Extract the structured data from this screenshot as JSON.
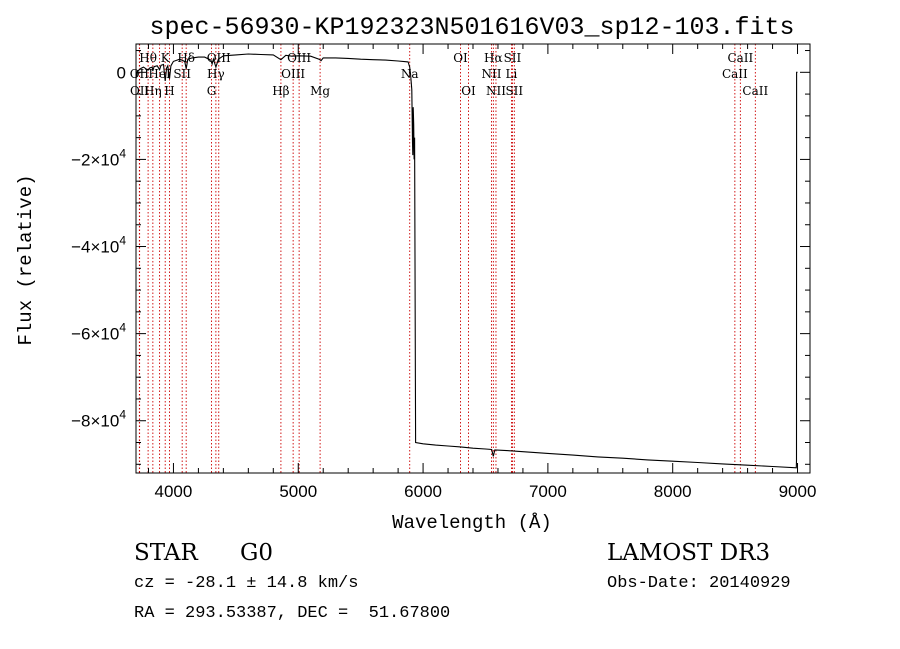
{
  "chart_data": {
    "type": "line",
    "title": "spec-56930-KP192323N501616V03_sp12-103.fits",
    "xlabel": "Wavelength (Å)",
    "ylabel": "Flux (relative)",
    "xlim": [
      3700,
      9100
    ],
    "ylim": [
      -92000,
      6500
    ],
    "x_ticks": [
      {
        "value": 4000,
        "label": "4000"
      },
      {
        "value": 5000,
        "label": "5000"
      },
      {
        "value": 6000,
        "label": "6000"
      },
      {
        "value": 7000,
        "label": "7000"
      },
      {
        "value": 8000,
        "label": "8000"
      },
      {
        "value": 9000,
        "label": "9000"
      }
    ],
    "y_ticks": [
      {
        "value": 0,
        "mantissa": "0",
        "exp": ""
      },
      {
        "value": -20000,
        "mantissa": "−2×10",
        "exp": "4"
      },
      {
        "value": -40000,
        "mantissa": "−4×10",
        "exp": "4"
      },
      {
        "value": -60000,
        "mantissa": "−6×10",
        "exp": "4"
      },
      {
        "value": -80000,
        "mantissa": "−8×10",
        "exp": "4"
      }
    ],
    "series": [
      {
        "name": "spectrum",
        "points": [
          [
            3700,
            -1500
          ],
          [
            3710,
            200
          ],
          [
            3740,
            900
          ],
          [
            3760,
            1200
          ],
          [
            3780,
            800
          ],
          [
            3797,
            500
          ],
          [
            3810,
            1000
          ],
          [
            3830,
            1200
          ],
          [
            3835,
            300
          ],
          [
            3845,
            1300
          ],
          [
            3870,
            1500
          ],
          [
            3889,
            600
          ],
          [
            3900,
            1600
          ],
          [
            3920,
            1800
          ],
          [
            3934,
            -2000
          ],
          [
            3945,
            1000
          ],
          [
            3955,
            1500
          ],
          [
            3968,
            -1500
          ],
          [
            3980,
            1500
          ],
          [
            4000,
            2500
          ],
          [
            4050,
            3000
          ],
          [
            4090,
            2500
          ],
          [
            4102,
            800
          ],
          [
            4115,
            3000
          ],
          [
            4150,
            3300
          ],
          [
            4200,
            3500
          ],
          [
            4250,
            3500
          ],
          [
            4300,
            2800
          ],
          [
            4310,
            1900
          ],
          [
            4320,
            3000
          ],
          [
            4340,
            1200
          ],
          [
            4360,
            3000
          ],
          [
            4400,
            3800
          ],
          [
            4500,
            4000
          ],
          [
            4600,
            4200
          ],
          [
            4700,
            4100
          ],
          [
            4800,
            4000
          ],
          [
            4861,
            2900
          ],
          [
            4900,
            3900
          ],
          [
            4950,
            3700
          ],
          [
            5000,
            3800
          ],
          [
            5100,
            3700
          ],
          [
            5167,
            3000
          ],
          [
            5183,
            2700
          ],
          [
            5200,
            3300
          ],
          [
            5300,
            3300
          ],
          [
            5400,
            3200
          ],
          [
            5500,
            3000
          ],
          [
            5600,
            2900
          ],
          [
            5700,
            2800
          ],
          [
            5800,
            2600
          ],
          [
            5880,
            2400
          ],
          [
            5893,
            1200
          ],
          [
            5900,
            -500
          ],
          [
            5910,
            -4000
          ],
          [
            5915,
            -16000
          ],
          [
            5918,
            -19000
          ],
          [
            5921,
            -8000
          ],
          [
            5925,
            -12000
          ],
          [
            5928,
            -20000
          ],
          [
            5932,
            -15000
          ],
          [
            5940,
            -85000
          ],
          [
            6000,
            -85300
          ],
          [
            6100,
            -85600
          ],
          [
            6200,
            -85800
          ],
          [
            6300,
            -86000
          ],
          [
            6400,
            -86300
          ],
          [
            6500,
            -86500
          ],
          [
            6550,
            -86600
          ],
          [
            6563,
            -88200
          ],
          [
            6575,
            -86700
          ],
          [
            6700,
            -86900
          ],
          [
            6800,
            -87100
          ],
          [
            7000,
            -87500
          ],
          [
            7200,
            -87900
          ],
          [
            7400,
            -88300
          ],
          [
            7600,
            -88600
          ],
          [
            7800,
            -89000
          ],
          [
            8000,
            -89300
          ],
          [
            8200,
            -89600
          ],
          [
            8400,
            -89900
          ],
          [
            8600,
            -90200
          ],
          [
            8800,
            -90500
          ],
          [
            8990,
            -90800
          ],
          [
            8992,
            -89000
          ],
          [
            8993,
            0
          ],
          [
            9000,
            0
          ]
        ]
      }
    ],
    "line_markers": [
      {
        "label": "Hθ",
        "wavelength": 3797,
        "row": 0
      },
      {
        "label": "OII",
        "wavelength": 3727,
        "row": 1
      },
      {
        "label": "OII",
        "wavelength": 3729,
        "row": 2
      },
      {
        "label": "Hη",
        "wavelength": 3835,
        "row": 2
      },
      {
        "label": "HeI",
        "wavelength": 3889,
        "row": 1
      },
      {
        "label": "K",
        "wavelength": 3934,
        "row": 0
      },
      {
        "label": "H",
        "wavelength": 3968,
        "row": 2
      },
      {
        "label": "SII",
        "wavelength": 4070,
        "row": 1
      },
      {
        "label": "Hδ",
        "wavelength": 4102,
        "row": 0
      },
      {
        "label": "OIII",
        "wavelength": 4363,
        "row": 0
      },
      {
        "label": "Hγ",
        "wavelength": 4340,
        "row": 1
      },
      {
        "label": "G",
        "wavelength": 4305,
        "row": 2
      },
      {
        "label": "Hβ",
        "wavelength": 4861,
        "row": 2
      },
      {
        "label": "OIII",
        "wavelength": 5007,
        "row": 0
      },
      {
        "label": "OIII",
        "wavelength": 4959,
        "row": 1
      },
      {
        "label": "Mg",
        "wavelength": 5175,
        "row": 2
      },
      {
        "label": "Na",
        "wavelength": 5893,
        "row": 1
      },
      {
        "label": "OI",
        "wavelength": 6300,
        "row": 0
      },
      {
        "label": "OI",
        "wavelength": 6364,
        "row": 2
      },
      {
        "label": "Hα",
        "wavelength": 6563,
        "row": 0
      },
      {
        "label": "NII",
        "wavelength": 6548,
        "row": 1
      },
      {
        "label": "NII",
        "wavelength": 6584,
        "row": 2
      },
      {
        "label": "SII",
        "wavelength": 6716,
        "row": 0
      },
      {
        "label": "Li",
        "wavelength": 6708,
        "row": 1
      },
      {
        "label": "SII",
        "wavelength": 6731,
        "row": 2
      },
      {
        "label": "CaII",
        "wavelength": 8542,
        "row": 0
      },
      {
        "label": "CaII",
        "wavelength": 8498,
        "row": 1
      },
      {
        "label": "CaII",
        "wavelength": 8662,
        "row": 2
      }
    ],
    "grid": false,
    "colors": {
      "spectrum": "#000000",
      "marker": "#cc0000",
      "axis": "#000000"
    }
  },
  "info": {
    "star_type": "STAR",
    "spec_class": "G0",
    "survey": "LAMOST DR3",
    "cz": "cz = -28.1 ± 14.8 km/s",
    "obs_date": "Obs-Date: 20140929",
    "radec": "RA = 293.53387, DEC =  51.67800"
  }
}
